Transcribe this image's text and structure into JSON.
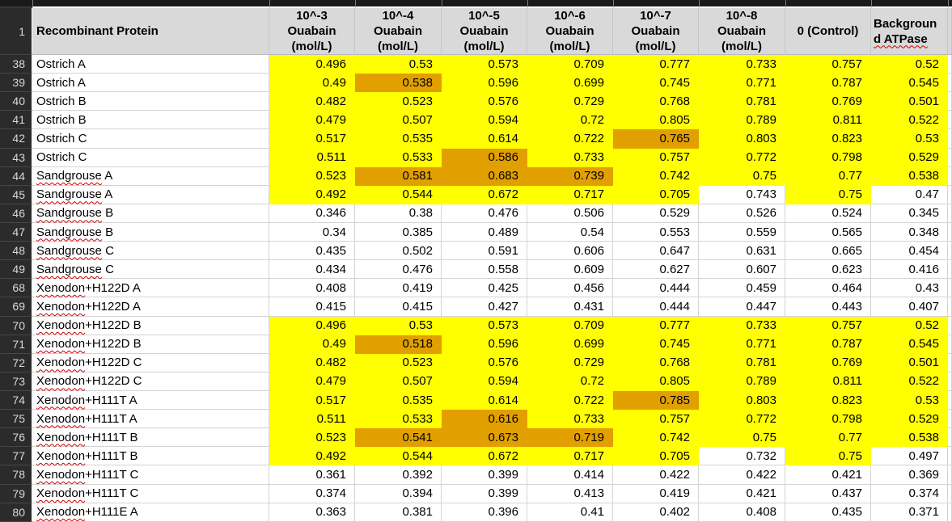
{
  "colors": {
    "highlight_yellow": "#ffff00",
    "highlight_orange": "#e2a000",
    "header_gray": "#d9d9d9",
    "row_header_dark": "#2b2b2b",
    "top_strip_dark": "#1a1a1a",
    "squiggle_red": "#cc0000"
  },
  "header": {
    "row_number": "1",
    "protein_label": "Recombinant Protein",
    "cols": [
      {
        "label": "10^-3\nOuabain\n(mol/L)"
      },
      {
        "label": "10^-4\nOuabain\n(mol/L)"
      },
      {
        "label": "10^-5\nOuabain\n(mol/L)"
      },
      {
        "label": "10^-6\nOuabain\n(mol/L)"
      },
      {
        "label": "10^-7\nOuabain\n(mol/L)"
      },
      {
        "label": "10^-8\nOuabain\n(mol/L)"
      },
      {
        "label": "0 (Control)"
      }
    ],
    "background_col": {
      "line1": "Backgroun",
      "line2": "d ATPase"
    }
  },
  "rows": [
    {
      "num": "38",
      "name": "Ostrich A",
      "sq": "",
      "values": [
        "0.496",
        "0.53",
        "0.573",
        "0.709",
        "0.777",
        "0.733",
        "0.757",
        "0.52"
      ],
      "fills": "yyyyyyyy"
    },
    {
      "num": "39",
      "name": "Ostrich A",
      "sq": "",
      "values": [
        "0.49",
        "0.538",
        "0.596",
        "0.699",
        "0.745",
        "0.771",
        "0.787",
        "0.545"
      ],
      "fills": "yoyyyyyy"
    },
    {
      "num": "40",
      "name": "Ostrich B",
      "sq": "",
      "values": [
        "0.482",
        "0.523",
        "0.576",
        "0.729",
        "0.768",
        "0.781",
        "0.769",
        "0.501"
      ],
      "fills": "yyyyyyyy"
    },
    {
      "num": "41",
      "name": "Ostrich B",
      "sq": "",
      "values": [
        "0.479",
        "0.507",
        "0.594",
        "0.72",
        "0.805",
        "0.789",
        "0.811",
        "0.522"
      ],
      "fills": "yyyyyyyy"
    },
    {
      "num": "42",
      "name": "Ostrich C",
      "sq": "",
      "values": [
        "0.517",
        "0.535",
        "0.614",
        "0.722",
        "0.765",
        "0.803",
        "0.823",
        "0.53"
      ],
      "fills": "yyyyoyyy"
    },
    {
      "num": "43",
      "name": "Ostrich C",
      "sq": "",
      "values": [
        "0.511",
        "0.533",
        "0.586",
        "0.733",
        "0.757",
        "0.772",
        "0.798",
        "0.529"
      ],
      "fills": "yyoyyyyy"
    },
    {
      "num": "44",
      "name": "Sandgrouse A",
      "sq": "Sandgrouse",
      "values": [
        "0.523",
        "0.581",
        "0.683",
        "0.739",
        "0.742",
        "0.75",
        "0.77",
        "0.538"
      ],
      "fills": "yoooyyyy"
    },
    {
      "num": "45",
      "name": "Sandgrouse A",
      "sq": "Sandgrouse",
      "values": [
        "0.492",
        "0.544",
        "0.672",
        "0.717",
        "0.705",
        "0.743",
        "0.75",
        "0.47"
      ],
      "fills": "yyyyywyw"
    },
    {
      "num": "46",
      "name": "Sandgrouse B",
      "sq": "Sandgrouse",
      "values": [
        "0.346",
        "0.38",
        "0.476",
        "0.506",
        "0.529",
        "0.526",
        "0.524",
        "0.345"
      ],
      "fills": "wwwwwwww"
    },
    {
      "num": "47",
      "name": "Sandgrouse B",
      "sq": "Sandgrouse",
      "values": [
        "0.34",
        "0.385",
        "0.489",
        "0.54",
        "0.553",
        "0.559",
        "0.565",
        "0.348"
      ],
      "fills": "wwwwwwww"
    },
    {
      "num": "48",
      "name": "Sandgrouse C",
      "sq": "Sandgrouse",
      "values": [
        "0.435",
        "0.502",
        "0.591",
        "0.606",
        "0.647",
        "0.631",
        "0.665",
        "0.454"
      ],
      "fills": "wwwwwwww"
    },
    {
      "num": "49",
      "name": "Sandgrouse C",
      "sq": "Sandgrouse",
      "values": [
        "0.434",
        "0.476",
        "0.558",
        "0.609",
        "0.627",
        "0.607",
        "0.623",
        "0.416"
      ],
      "fills": "wwwwwwww"
    },
    {
      "num": "68",
      "name": "Xenodon+H122D A",
      "sq": "Xenodon",
      "values": [
        "0.408",
        "0.419",
        "0.425",
        "0.456",
        "0.444",
        "0.459",
        "0.464",
        "0.43"
      ],
      "fills": "wwwwwwww"
    },
    {
      "num": "69",
      "name": "Xenodon+H122D A",
      "sq": "Xenodon",
      "values": [
        "0.415",
        "0.415",
        "0.427",
        "0.431",
        "0.444",
        "0.447",
        "0.443",
        "0.407"
      ],
      "fills": "wwwwwwww"
    },
    {
      "num": "70",
      "name": "Xenodon+H122D B",
      "sq": "Xenodon",
      "values": [
        "0.496",
        "0.53",
        "0.573",
        "0.709",
        "0.777",
        "0.733",
        "0.757",
        "0.52"
      ],
      "fills": "yyyyyyyy"
    },
    {
      "num": "71",
      "name": "Xenodon+H122D B",
      "sq": "Xenodon",
      "values": [
        "0.49",
        "0.518",
        "0.596",
        "0.699",
        "0.745",
        "0.771",
        "0.787",
        "0.545"
      ],
      "fills": "yoyyyyyy"
    },
    {
      "num": "72",
      "name": "Xenodon+H122D C",
      "sq": "Xenodon",
      "values": [
        "0.482",
        "0.523",
        "0.576",
        "0.729",
        "0.768",
        "0.781",
        "0.769",
        "0.501"
      ],
      "fills": "yyyyyyyy"
    },
    {
      "num": "73",
      "name": "Xenodon+H122D C",
      "sq": "Xenodon",
      "values": [
        "0.479",
        "0.507",
        "0.594",
        "0.72",
        "0.805",
        "0.789",
        "0.811",
        "0.522"
      ],
      "fills": "yyyyyyyy"
    },
    {
      "num": "74",
      "name": "Xenodon+H111T A",
      "sq": "Xenodon",
      "values": [
        "0.517",
        "0.535",
        "0.614",
        "0.722",
        "0.785",
        "0.803",
        "0.823",
        "0.53"
      ],
      "fills": "yyyyoyyy"
    },
    {
      "num": "75",
      "name": "Xenodon+H111T A",
      "sq": "Xenodon",
      "values": [
        "0.511",
        "0.533",
        "0.616",
        "0.733",
        "0.757",
        "0.772",
        "0.798",
        "0.529"
      ],
      "fills": "yyoyyyyy"
    },
    {
      "num": "76",
      "name": "Xenodon+H111T B",
      "sq": "Xenodon",
      "values": [
        "0.523",
        "0.541",
        "0.673",
        "0.719",
        "0.742",
        "0.75",
        "0.77",
        "0.538"
      ],
      "fills": "yoooyyyy"
    },
    {
      "num": "77",
      "name": "Xenodon+H111T B",
      "sq": "Xenodon",
      "values": [
        "0.492",
        "0.544",
        "0.672",
        "0.717",
        "0.705",
        "0.732",
        "0.75",
        "0.497"
      ],
      "fills": "yyyyywyw"
    },
    {
      "num": "78",
      "name": "Xenodon+H111T C",
      "sq": "Xenodon",
      "values": [
        "0.361",
        "0.392",
        "0.399",
        "0.414",
        "0.422",
        "0.422",
        "0.421",
        "0.369"
      ],
      "fills": "wwwwwwww"
    },
    {
      "num": "79",
      "name": "Xenodon+H111T C",
      "sq": "Xenodon",
      "values": [
        "0.374",
        "0.394",
        "0.399",
        "0.413",
        "0.419",
        "0.421",
        "0.437",
        "0.374"
      ],
      "fills": "wwwwwwww"
    },
    {
      "num": "80",
      "name": "Xenodon+H111E A",
      "sq": "Xenodon",
      "values": [
        "0.363",
        "0.381",
        "0.396",
        "0.41",
        "0.402",
        "0.408",
        "0.435",
        "0.371"
      ],
      "fills": "wwwwwwww"
    }
  ]
}
